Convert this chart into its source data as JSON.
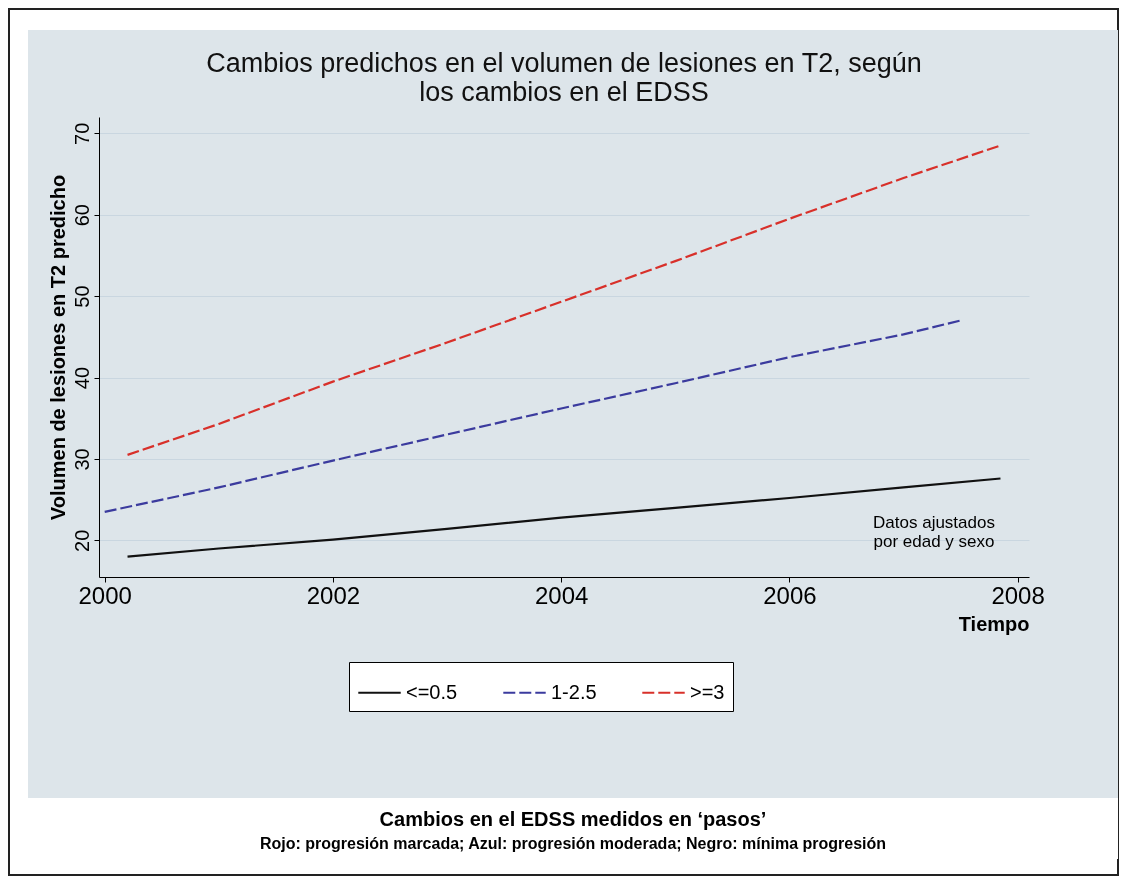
{
  "chart_data": {
    "type": "line",
    "title": "Cambios predichos en el volumen de lesiones en T2, según\nlos cambios en el EDSS",
    "xlabel": "Tiempo",
    "ylabel": "Volumen de lesiones en T2 predicho",
    "series": [
      {
        "name": "<=0.5",
        "color": "#111111",
        "line_style": "solid",
        "x": [
          2000.2,
          2001,
          2002,
          2003,
          2004,
          2005,
          2006,
          2007,
          2007.85
        ],
        "values": [
          18,
          19,
          20.1,
          21.4,
          22.8,
          24,
          25.2,
          26.5,
          27.6
        ]
      },
      {
        "name": "1-2.5",
        "color": "#3b3b9e",
        "line_style": "dashed",
        "x": [
          2000,
          2001,
          2002,
          2003,
          2004,
          2005,
          2006,
          2007,
          2007.5
        ],
        "values": [
          23.5,
          26.5,
          29.8,
          33,
          36.2,
          39.3,
          42.5,
          45.3,
          47
        ]
      },
      {
        "name": ">=3",
        "color": "#d8302a",
        "line_style": "dashed",
        "x": [
          2000.2,
          2001,
          2002,
          2003,
          2004,
          2005,
          2006,
          2007,
          2007.85
        ],
        "values": [
          30.5,
          34.3,
          39.5,
          44.3,
          49.3,
          54.3,
          59.5,
          64.5,
          68.5
        ]
      }
    ],
    "xlim": [
      1999.95,
      2008.1
    ],
    "xticks": [
      2000,
      2002,
      2004,
      2006,
      2008
    ],
    "ylim": [
      15.5,
      72
    ],
    "yticks": [
      20,
      30,
      40,
      50,
      60,
      70
    ],
    "grid": "y",
    "legend": "bottom",
    "marker": "none",
    "annotations": [
      "Datos ajustados\npor edad y sexo",
      "Cambios en el EDSS medidos en ‘pasos’",
      "Rojo: progresión marcada; Azul: progresión moderada; Negro: mínima progresión"
    ]
  }
}
